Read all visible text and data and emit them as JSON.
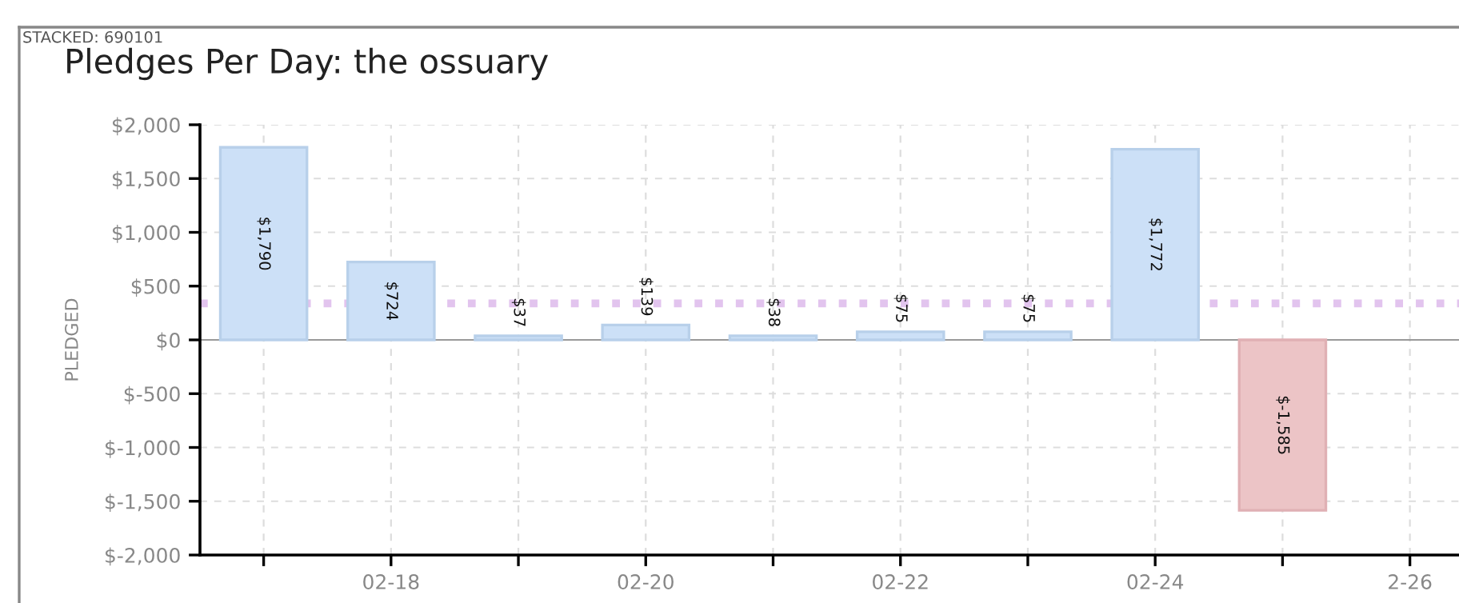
{
  "chart_data": {
    "type": "bar",
    "title": "Pledges Per Day: the ossuary",
    "ylabel": "PLEDGED",
    "annotations": [
      "STACKED: 690101"
    ],
    "categories": [
      null,
      "02-18",
      null,
      "02-20",
      null,
      "02-22",
      null,
      "02-24",
      null,
      "2-26"
    ],
    "values": [
      1790,
      724,
      37,
      139,
      38,
      75,
      75,
      1772,
      -1585,
      null
    ],
    "colors": [
      "#cce0f7",
      "#cce0f7",
      "#cce0f7",
      "#cce0f7",
      "#cce0f7",
      "#cce0f7",
      "#cce0f7",
      "#cce0f7",
      "#ecc4c6",
      "#cce0f7"
    ],
    "value_labels": [
      "$1,790",
      "$724",
      "$37",
      "$139",
      "$38",
      "$75",
      "$75",
      "$1,772",
      "$-1,585",
      null
    ],
    "ylim": [
      -2000,
      2000
    ],
    "yticks": [
      {
        "value": -2000,
        "label": "$-2,000"
      },
      {
        "value": -1500,
        "label": "$-1,500"
      },
      {
        "value": -1000,
        "label": "$-1,000"
      },
      {
        "value": -500,
        "label": "$-500"
      },
      {
        "value": 0,
        "label": "$0"
      },
      {
        "value": 500,
        "label": "$500"
      },
      {
        "value": 1000,
        "label": "$1,000"
      },
      {
        "value": 1500,
        "label": "$1,500"
      },
      {
        "value": 2000,
        "label": "$2,000"
      }
    ],
    "ref_lines": [
      {
        "axis": "y",
        "value": 340,
        "color": "#e2c4ee",
        "line_style": "dotted"
      }
    ],
    "grid": true
  }
}
